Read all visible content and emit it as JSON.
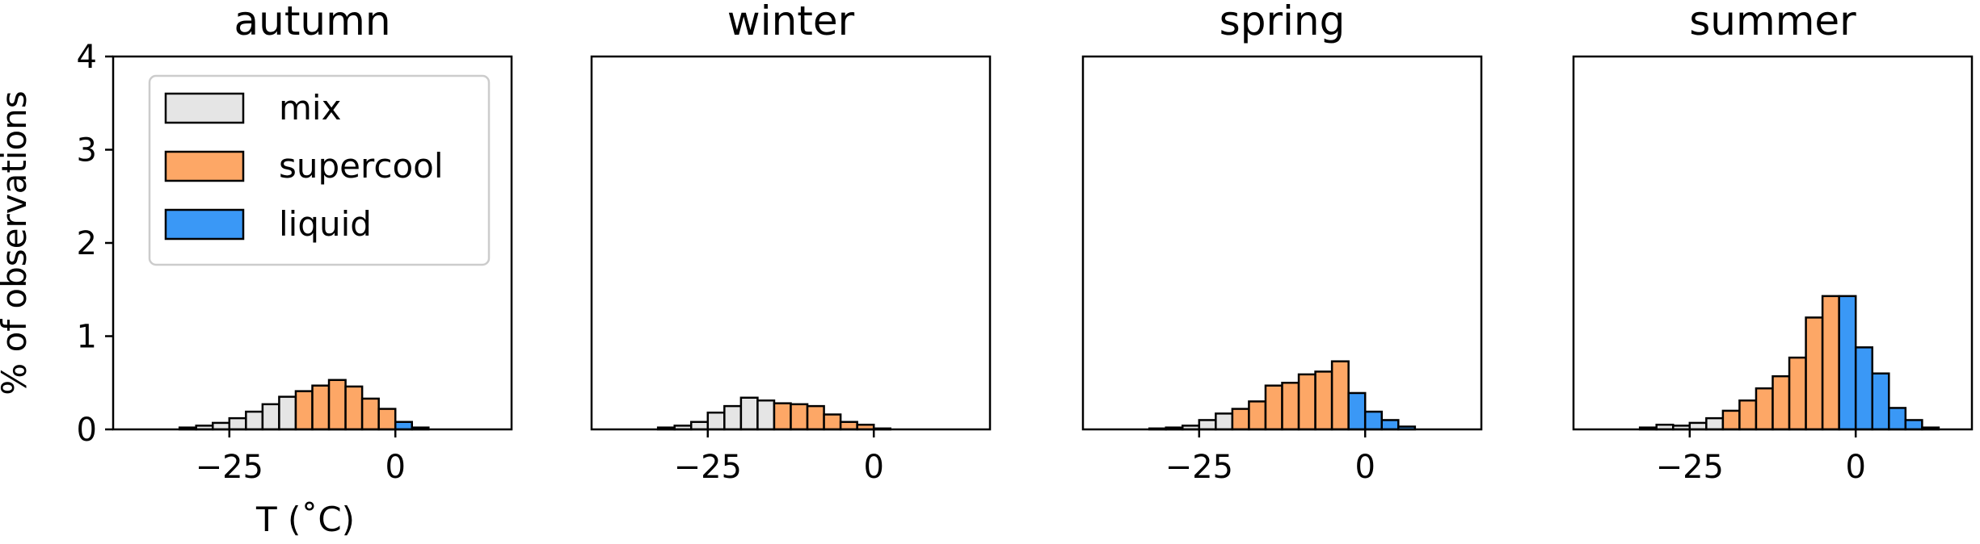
{
  "figure": {
    "ylabel": "% of observations",
    "xlabel": "T (˚C)"
  },
  "colors": {
    "mix": "#e5e5e5",
    "supercool": "#fda766",
    "liquid": "#3a98f6",
    "edge": "#000000"
  },
  "legend": {
    "placement": "upper-left of first panel",
    "items": [
      {
        "label": "mix",
        "color": "#e5e5e5"
      },
      {
        "label": "supercool",
        "color": "#fda766"
      },
      {
        "label": "liquid",
        "color": "#3a98f6"
      }
    ]
  },
  "chart_data": [
    {
      "type": "bar",
      "title": "autumn",
      "xlim": [
        -42.5,
        17.5
      ],
      "ylim": [
        0,
        4
      ],
      "xticks": [
        -25,
        0
      ],
      "xtick_labels": [
        "−25",
        "0"
      ],
      "yticks": [
        0,
        1,
        2,
        3,
        4
      ],
      "bin_width": 2.5,
      "bins": [
        {
          "x": -32.5,
          "value": 0.02,
          "phase": "mix"
        },
        {
          "x": -30.0,
          "value": 0.04,
          "phase": "mix"
        },
        {
          "x": -27.5,
          "value": 0.07,
          "phase": "mix"
        },
        {
          "x": -25.0,
          "value": 0.12,
          "phase": "mix"
        },
        {
          "x": -22.5,
          "value": 0.19,
          "phase": "mix"
        },
        {
          "x": -20.0,
          "value": 0.27,
          "phase": "mix"
        },
        {
          "x": -17.5,
          "value": 0.35,
          "phase": "mix"
        },
        {
          "x": -15.0,
          "value": 0.41,
          "phase": "supercool"
        },
        {
          "x": -12.5,
          "value": 0.47,
          "phase": "supercool"
        },
        {
          "x": -10.0,
          "value": 0.53,
          "phase": "supercool"
        },
        {
          "x": -7.5,
          "value": 0.46,
          "phase": "supercool"
        },
        {
          "x": -5.0,
          "value": 0.33,
          "phase": "supercool"
        },
        {
          "x": -2.5,
          "value": 0.22,
          "phase": "supercool"
        },
        {
          "x": 0.0,
          "value": 0.08,
          "phase": "liquid"
        },
        {
          "x": 2.5,
          "value": 0.02,
          "phase": "liquid"
        }
      ]
    },
    {
      "type": "bar",
      "title": "winter",
      "xlim": [
        -42.5,
        17.5
      ],
      "ylim": [
        0,
        4
      ],
      "xticks": [
        -25,
        0
      ],
      "xtick_labels": [
        "−25",
        "0"
      ],
      "bin_width": 2.5,
      "bins": [
        {
          "x": -32.5,
          "value": 0.02,
          "phase": "mix"
        },
        {
          "x": -30.0,
          "value": 0.04,
          "phase": "mix"
        },
        {
          "x": -27.5,
          "value": 0.08,
          "phase": "mix"
        },
        {
          "x": -25.0,
          "value": 0.18,
          "phase": "mix"
        },
        {
          "x": -22.5,
          "value": 0.25,
          "phase": "mix"
        },
        {
          "x": -20.0,
          "value": 0.34,
          "phase": "mix"
        },
        {
          "x": -17.5,
          "value": 0.31,
          "phase": "mix"
        },
        {
          "x": -15.0,
          "value": 0.28,
          "phase": "supercool"
        },
        {
          "x": -12.5,
          "value": 0.27,
          "phase": "supercool"
        },
        {
          "x": -10.0,
          "value": 0.25,
          "phase": "supercool"
        },
        {
          "x": -7.5,
          "value": 0.16,
          "phase": "supercool"
        },
        {
          "x": -5.0,
          "value": 0.08,
          "phase": "supercool"
        },
        {
          "x": -2.5,
          "value": 0.05,
          "phase": "supercool"
        },
        {
          "x": 0.0,
          "value": 0.01,
          "phase": "liquid"
        }
      ]
    },
    {
      "type": "bar",
      "title": "spring",
      "xlim": [
        -42.5,
        17.5
      ],
      "ylim": [
        0,
        4
      ],
      "xticks": [
        -25,
        0
      ],
      "xtick_labels": [
        "−25",
        "0"
      ],
      "bin_width": 2.5,
      "bins": [
        {
          "x": -32.5,
          "value": 0.01,
          "phase": "mix"
        },
        {
          "x": -30.0,
          "value": 0.02,
          "phase": "mix"
        },
        {
          "x": -27.5,
          "value": 0.04,
          "phase": "mix"
        },
        {
          "x": -25.0,
          "value": 0.1,
          "phase": "mix"
        },
        {
          "x": -22.5,
          "value": 0.17,
          "phase": "mix"
        },
        {
          "x": -20.0,
          "value": 0.22,
          "phase": "supercool"
        },
        {
          "x": -17.5,
          "value": 0.3,
          "phase": "supercool"
        },
        {
          "x": -15.0,
          "value": 0.47,
          "phase": "supercool"
        },
        {
          "x": -12.5,
          "value": 0.5,
          "phase": "supercool"
        },
        {
          "x": -10.0,
          "value": 0.59,
          "phase": "supercool"
        },
        {
          "x": -7.5,
          "value": 0.62,
          "phase": "supercool"
        },
        {
          "x": -5.0,
          "value": 0.73,
          "phase": "supercool"
        },
        {
          "x": -2.5,
          "value": 0.39,
          "phase": "liquid"
        },
        {
          "x": 0.0,
          "value": 0.19,
          "phase": "liquid"
        },
        {
          "x": 2.5,
          "value": 0.1,
          "phase": "liquid"
        },
        {
          "x": 5.0,
          "value": 0.03,
          "phase": "liquid"
        }
      ]
    },
    {
      "type": "bar",
      "title": "summer",
      "xlim": [
        -42.5,
        17.5
      ],
      "ylim": [
        0,
        4
      ],
      "xticks": [
        -25,
        0
      ],
      "xtick_labels": [
        "−25",
        "0"
      ],
      "bin_width": 2.5,
      "bins": [
        {
          "x": -32.5,
          "value": 0.02,
          "phase": "mix"
        },
        {
          "x": -30.0,
          "value": 0.05,
          "phase": "mix"
        },
        {
          "x": -27.5,
          "value": 0.04,
          "phase": "mix"
        },
        {
          "x": -25.0,
          "value": 0.07,
          "phase": "mix"
        },
        {
          "x": -22.5,
          "value": 0.12,
          "phase": "mix"
        },
        {
          "x": -20.0,
          "value": 0.2,
          "phase": "supercool"
        },
        {
          "x": -17.5,
          "value": 0.31,
          "phase": "supercool"
        },
        {
          "x": -15.0,
          "value": 0.44,
          "phase": "supercool"
        },
        {
          "x": -12.5,
          "value": 0.57,
          "phase": "supercool"
        },
        {
          "x": -10.0,
          "value": 0.77,
          "phase": "supercool"
        },
        {
          "x": -7.5,
          "value": 1.2,
          "phase": "supercool"
        },
        {
          "x": -5.0,
          "value": 1.43,
          "phase": "supercool"
        },
        {
          "x": -2.5,
          "value": 1.43,
          "phase": "liquid"
        },
        {
          "x": 0.0,
          "value": 0.88,
          "phase": "liquid"
        },
        {
          "x": 2.5,
          "value": 0.6,
          "phase": "liquid"
        },
        {
          "x": 5.0,
          "value": 0.23,
          "phase": "liquid"
        },
        {
          "x": 7.5,
          "value": 0.1,
          "phase": "liquid"
        },
        {
          "x": 10.0,
          "value": 0.02,
          "phase": "liquid"
        }
      ]
    }
  ]
}
